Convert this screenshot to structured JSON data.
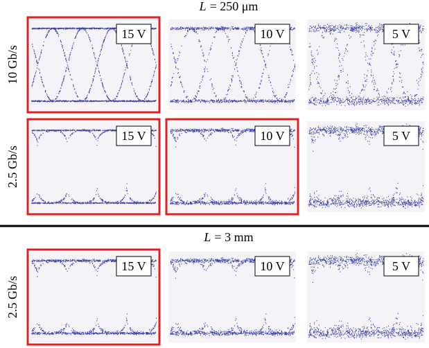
{
  "sections": [
    {
      "title": {
        "variable": "L",
        "value": "= 250 μm"
      },
      "rows": [
        {
          "label": "10 Gb/s",
          "panels": [
            {
              "voltage": "15 V",
              "highlighted": true
            },
            {
              "voltage": "10 V",
              "highlighted": false
            },
            {
              "voltage": "5 V",
              "highlighted": false
            }
          ]
        },
        {
          "label": "2.5 Gb/s",
          "panels": [
            {
              "voltage": "15 V",
              "highlighted": true
            },
            {
              "voltage": "10 V",
              "highlighted": true
            },
            {
              "voltage": "5 V",
              "highlighted": false
            }
          ]
        }
      ]
    },
    {
      "title": {
        "variable": "L",
        "value": "= 3 mm"
      },
      "rows": [
        {
          "label": "2.5 Gb/s",
          "panels": [
            {
              "voltage": "15 V",
              "highlighted": true
            },
            {
              "voltage": "10 V",
              "highlighted": false
            },
            {
              "voltage": "5 V",
              "highlighted": false
            }
          ]
        }
      ]
    }
  ]
}
